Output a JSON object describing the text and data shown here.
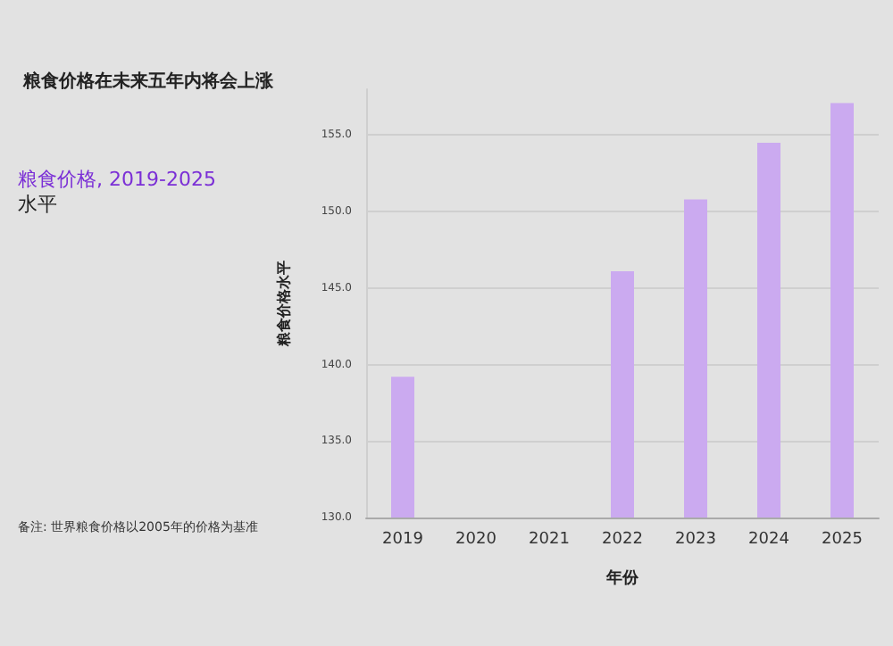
{
  "chart_data": {
    "type": "bar",
    "title": "粮食价格在未来五年内将会上涨",
    "subtitle": "粮食价格, 2019-2025\n水平",
    "xlabel": "年份",
    "ylabel": "粮食价格水平",
    "categories": [
      "2019",
      "2020",
      "2021",
      "2022",
      "2023",
      "2024",
      "2025"
    ],
    "values": [
      139.2,
      null,
      null,
      146.1,
      150.8,
      154.5,
      157.1
    ],
    "color": "#cbaaf0",
    "ylim": [
      130,
      158
    ],
    "yticks": [
      {
        "value": 130,
        "label": "130.0"
      },
      {
        "value": 135,
        "label": "135.0"
      },
      {
        "value": 140,
        "label": "140.0"
      },
      {
        "value": 145,
        "label": "145.0"
      },
      {
        "value": 150,
        "label": "150.0"
      },
      {
        "value": 155,
        "label": "155.0"
      }
    ],
    "grid": "y",
    "annotations": [
      "备注: 世界粮食价格以2005年的价格为基准"
    ]
  }
}
